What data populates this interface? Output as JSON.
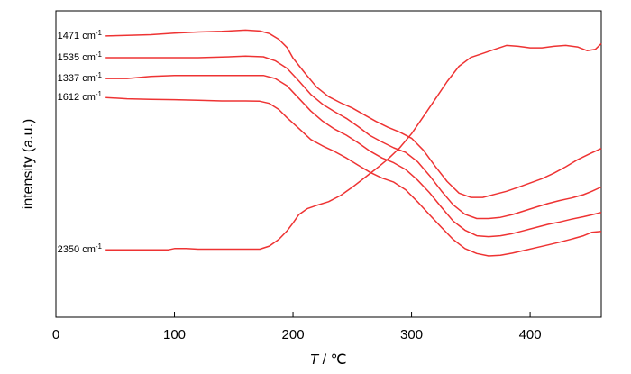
{
  "chart_data": {
    "type": "line",
    "xlabel_var": "T",
    "xlabel_unit": " / ℃",
    "ylabel": "intensity (a.u.)",
    "xlim": [
      0,
      460
    ],
    "xticks": [
      0,
      100,
      200,
      300,
      400
    ],
    "ylim": [
      0,
      100
    ],
    "line_color": "#ee3333",
    "series": [
      {
        "name": "1471 cm",
        "superscript": "-1",
        "points": [
          [
            42,
            91.8
          ],
          [
            60,
            92
          ],
          [
            80,
            92.2
          ],
          [
            100,
            92.7
          ],
          [
            120,
            93.1
          ],
          [
            140,
            93.3
          ],
          [
            160,
            93.7
          ],
          [
            172,
            93.4
          ],
          [
            180,
            92.6
          ],
          [
            188,
            90.7
          ],
          [
            195,
            88
          ],
          [
            200,
            84.6
          ],
          [
            210,
            79.7
          ],
          [
            220,
            75.1
          ],
          [
            230,
            72
          ],
          [
            240,
            70
          ],
          [
            250,
            68.3
          ],
          [
            260,
            66.1
          ],
          [
            270,
            63.9
          ],
          [
            280,
            62
          ],
          [
            290,
            60.4
          ],
          [
            300,
            58.4
          ],
          [
            310,
            54.5
          ],
          [
            320,
            49.2
          ],
          [
            330,
            44.3
          ],
          [
            340,
            40.5
          ],
          [
            350,
            39.1
          ],
          [
            360,
            39.1
          ],
          [
            370,
            40.1
          ],
          [
            380,
            41.1
          ],
          [
            390,
            42.4
          ],
          [
            400,
            43.8
          ],
          [
            410,
            45.2
          ],
          [
            420,
            47
          ],
          [
            430,
            49.1
          ],
          [
            440,
            51.4
          ],
          [
            450,
            53.3
          ],
          [
            460,
            55.1
          ]
        ]
      },
      {
        "name": "1535 cm",
        "superscript": "-1",
        "points": [
          [
            42,
            84.7
          ],
          [
            60,
            84.7
          ],
          [
            80,
            84.7
          ],
          [
            100,
            84.7
          ],
          [
            120,
            84.7
          ],
          [
            140,
            84.9
          ],
          [
            160,
            85.2
          ],
          [
            175,
            85
          ],
          [
            185,
            83.7
          ],
          [
            195,
            81.2
          ],
          [
            205,
            77.1
          ],
          [
            215,
            72.7
          ],
          [
            225,
            69.5
          ],
          [
            235,
            67.1
          ],
          [
            245,
            64.9
          ],
          [
            255,
            62.2
          ],
          [
            265,
            59.3
          ],
          [
            275,
            57.2
          ],
          [
            285,
            55.3
          ],
          [
            295,
            53.8
          ],
          [
            305,
            50.8
          ],
          [
            315,
            46.3
          ],
          [
            325,
            41.3
          ],
          [
            335,
            36.7
          ],
          [
            345,
            33.6
          ],
          [
            355,
            32.2
          ],
          [
            365,
            32.2
          ],
          [
            375,
            32.6
          ],
          [
            385,
            33.5
          ],
          [
            395,
            34.7
          ],
          [
            405,
            35.9
          ],
          [
            415,
            37.1
          ],
          [
            425,
            38.1
          ],
          [
            435,
            38.9
          ],
          [
            445,
            40
          ],
          [
            452,
            41.1
          ],
          [
            460,
            42.5
          ]
        ]
      },
      {
        "name": "1337 cm",
        "superscript": "-1",
        "points": [
          [
            42,
            77.9
          ],
          [
            60,
            77.9
          ],
          [
            80,
            78.6
          ],
          [
            100,
            78.9
          ],
          [
            120,
            78.9
          ],
          [
            140,
            78.9
          ],
          [
            160,
            78.9
          ],
          [
            175,
            78.9
          ],
          [
            185,
            77.9
          ],
          [
            195,
            75.5
          ],
          [
            205,
            71.4
          ],
          [
            215,
            67.3
          ],
          [
            225,
            64
          ],
          [
            235,
            61.4
          ],
          [
            245,
            59.4
          ],
          [
            255,
            56.9
          ],
          [
            265,
            54.2
          ],
          [
            275,
            52
          ],
          [
            285,
            50.4
          ],
          [
            295,
            48.2
          ],
          [
            305,
            44.8
          ],
          [
            315,
            40.7
          ],
          [
            325,
            36
          ],
          [
            335,
            31.4
          ],
          [
            345,
            28.4
          ],
          [
            355,
            26.6
          ],
          [
            365,
            26.3
          ],
          [
            375,
            26.6
          ],
          [
            385,
            27.3
          ],
          [
            395,
            28.3
          ],
          [
            405,
            29.3
          ],
          [
            415,
            30.3
          ],
          [
            425,
            31.1
          ],
          [
            435,
            32
          ],
          [
            445,
            32.8
          ],
          [
            452,
            33.4
          ],
          [
            460,
            34.2
          ]
        ]
      },
      {
        "name": "1612 cm",
        "superscript": "-1",
        "points": [
          [
            42,
            71.7
          ],
          [
            60,
            71.3
          ],
          [
            80,
            71.1
          ],
          [
            100,
            71
          ],
          [
            120,
            70.8
          ],
          [
            140,
            70.6
          ],
          [
            160,
            70.6
          ],
          [
            172,
            70.5
          ],
          [
            180,
            69.8
          ],
          [
            188,
            67.8
          ],
          [
            195,
            65.1
          ],
          [
            205,
            61.6
          ],
          [
            215,
            58
          ],
          [
            225,
            55.9
          ],
          [
            235,
            54.1
          ],
          [
            245,
            52
          ],
          [
            255,
            49.6
          ],
          [
            265,
            47.3
          ],
          [
            275,
            45.4
          ],
          [
            285,
            44.1
          ],
          [
            295,
            41.6
          ],
          [
            305,
            37.7
          ],
          [
            315,
            33.5
          ],
          [
            325,
            29.4
          ],
          [
            335,
            25.4
          ],
          [
            345,
            22.4
          ],
          [
            355,
            20.8
          ],
          [
            365,
            20
          ],
          [
            375,
            20.2
          ],
          [
            385,
            20.9
          ],
          [
            395,
            21.8
          ],
          [
            405,
            22.7
          ],
          [
            415,
            23.6
          ],
          [
            425,
            24.5
          ],
          [
            435,
            25.5
          ],
          [
            445,
            26.6
          ],
          [
            452,
            27.7
          ],
          [
            460,
            28
          ]
        ]
      },
      {
        "name": "2350 cm",
        "superscript": "-1",
        "points": [
          [
            42,
            22
          ],
          [
            60,
            22
          ],
          [
            80,
            22
          ],
          [
            95,
            22
          ],
          [
            100,
            22.4
          ],
          [
            110,
            22.4
          ],
          [
            120,
            22.2
          ],
          [
            140,
            22.2
          ],
          [
            160,
            22.2
          ],
          [
            172,
            22.2
          ],
          [
            180,
            23.2
          ],
          [
            188,
            25.4
          ],
          [
            195,
            28.2
          ],
          [
            200,
            30.7
          ],
          [
            205,
            33.5
          ],
          [
            212,
            35.4
          ],
          [
            220,
            36.5
          ],
          [
            230,
            37.7
          ],
          [
            240,
            39.7
          ],
          [
            250,
            42.4
          ],
          [
            260,
            45.4
          ],
          [
            270,
            48.4
          ],
          [
            280,
            51.6
          ],
          [
            290,
            55.3
          ],
          [
            300,
            59.9
          ],
          [
            310,
            65.5
          ],
          [
            320,
            71.2
          ],
          [
            330,
            76.9
          ],
          [
            340,
            81.9
          ],
          [
            350,
            84.8
          ],
          [
            360,
            86.1
          ],
          [
            370,
            87.4
          ],
          [
            380,
            88.7
          ],
          [
            390,
            88.4
          ],
          [
            400,
            87.9
          ],
          [
            410,
            87.9
          ],
          [
            420,
            88.4
          ],
          [
            430,
            88.7
          ],
          [
            440,
            88.2
          ],
          [
            448,
            87
          ],
          [
            455,
            87.4
          ],
          [
            460,
            89.3
          ]
        ]
      }
    ]
  }
}
